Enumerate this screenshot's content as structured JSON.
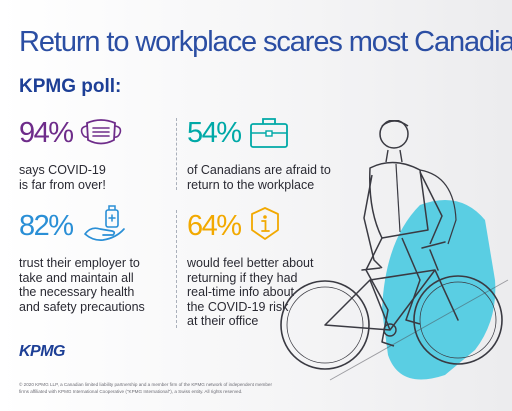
{
  "title": "Return to workplace scares most Canadians",
  "subtitle": "KPMG poll:",
  "stats": [
    {
      "percent": "94%",
      "icon": "face-mask-icon",
      "color": "#6e2c8a",
      "lines": [
        "says COVID-19",
        "is far from over!"
      ]
    },
    {
      "percent": "54%",
      "icon": "briefcase-icon",
      "color": "#00a9a7",
      "lines": [
        "of Canadians are afraid to",
        "return to the workplace"
      ]
    },
    {
      "percent": "82%",
      "icon": "hand-sanitizer-icon",
      "color": "#2a8fd6",
      "lines": [
        "trust their employer to",
        "take and maintain all",
        "the necessary health",
        "and safety precautions"
      ]
    },
    {
      "percent": "64%",
      "icon": "info-icon",
      "color": "#f2a900",
      "lines": [
        "would feel better about",
        "returning if they had",
        "real-time info about",
        "the COVID-19 risk",
        "at their office"
      ]
    }
  ],
  "logo": "KPMG",
  "footer": {
    "lines": [
      "© 2020 KPMG LLP, a Canadian limited liability partnership and a member firm of the KPMG network of independent member",
      "firms affiliated with KPMG International Cooperative (\"KPMG International\"), a Swiss entity. All rights reserved."
    ]
  },
  "colors": {
    "title": "#2b4ea3",
    "accent_blue": "#1d3f96",
    "illustration_highlight": "#3fc8e0"
  }
}
